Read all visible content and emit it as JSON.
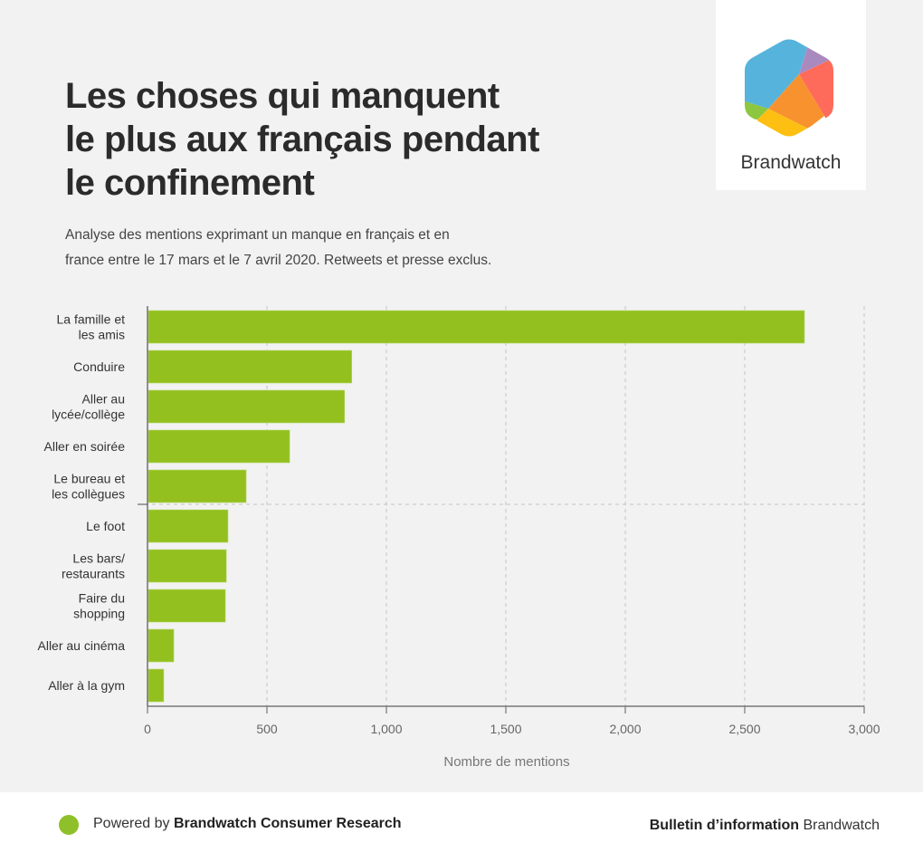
{
  "header": {
    "title_lines": [
      "Les choses qui manquent",
      "le plus aux français pendant",
      "le confinement"
    ],
    "subtitle_lines": [
      "Analyse des mentions exprimant un manque en français et en",
      "france entre le 17 mars et le 7 avril 2020. Retweets et presse exclus."
    ]
  },
  "logo": {
    "text": "Brandwatch",
    "colors": [
      "#56b4dc",
      "#a98abf",
      "#ff6b5a",
      "#f7922f",
      "#fdbf12",
      "#8dc63f"
    ]
  },
  "chart_data": {
    "type": "bar",
    "orientation": "horizontal",
    "title": "Les choses qui manquent le plus aux français pendant le confinement",
    "xlabel": "Nombre de mentions",
    "ylabel": "",
    "categories": [
      [
        "La famille et",
        "les amis"
      ],
      [
        "Conduire"
      ],
      [
        "Aller au",
        "lycée/collège"
      ],
      [
        "Aller en soirée"
      ],
      [
        "Le bureau et",
        "les collègues"
      ],
      [
        "Le foot"
      ],
      [
        "Les bars/",
        "restaurants"
      ],
      [
        "Faire du",
        "shopping"
      ],
      [
        "Aller au cinéma"
      ],
      [
        "Aller à la gym"
      ]
    ],
    "values": [
      2750,
      855,
      825,
      595,
      413,
      337,
      330,
      326,
      110,
      68
    ],
    "xlim": [
      0,
      3000
    ],
    "xticks": [
      0,
      500,
      1000,
      1500,
      2000,
      2500,
      3000
    ],
    "xtick_labels": [
      "0",
      "500",
      "1,000",
      "1,500",
      "2,000",
      "2,500",
      "3,000"
    ],
    "grid": "vertical dashed",
    "divider_after_index": 4,
    "bar_color": "#93c01f",
    "legend": "none"
  },
  "footer": {
    "powered_prefix": "Powered by ",
    "powered_brand": "Brandwatch Consumer Research",
    "bulletin_bold": "Bulletin d’information",
    "bulletin_brand": " Brandwatch",
    "dot_color": "#8fc02a"
  }
}
